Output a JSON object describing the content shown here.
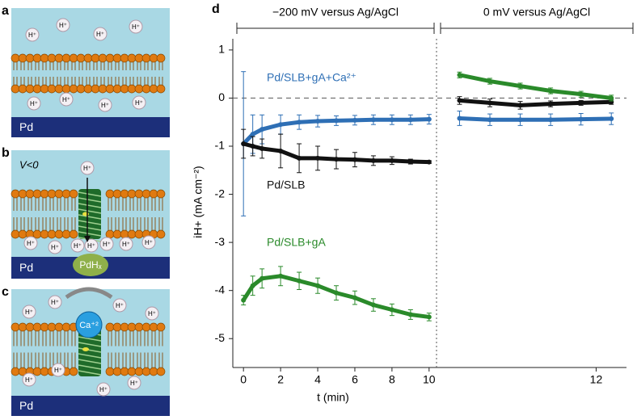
{
  "panels": [
    {
      "label": "a",
      "ions": [
        "H⁺",
        "H⁺",
        "H⁺",
        "H⁺",
        "H⁺",
        "H⁺",
        "H⁺",
        "H⁺"
      ],
      "substrate": "Pd"
    },
    {
      "label": "b",
      "voltage": "V<0",
      "ions": [
        "H⁺",
        "H⁺",
        "H⁺",
        "H⁺",
        "H⁺",
        "H⁺",
        "H⁺",
        "H⁺"
      ],
      "substrate": "Pd",
      "hydride": "PdHₓ"
    },
    {
      "label": "c",
      "ions": [
        "H⁺",
        "H⁺",
        "H⁺",
        "H⁺",
        "H⁺",
        "H⁺",
        "H⁺",
        "H⁺"
      ],
      "substrate": "Pd",
      "blocker": "Ca⁺²"
    }
  ],
  "chart_data": {
    "type": "scatter",
    "panel_label": "d",
    "segment_labels": [
      "−200 mV versus Ag/AgCl",
      "0 mV versus Ag/AgCl"
    ],
    "xlabel": "t (min)",
    "ylabel": "iH+ (mA cm⁻²)",
    "x": [
      0,
      0.5,
      1,
      2,
      3,
      4,
      5,
      6,
      7,
      8,
      9,
      10
    ],
    "x2": [
      10.2,
      10.6,
      11,
      11.4,
      11.8,
      12.2
    ],
    "xlim": [
      -0.4,
      10.4
    ],
    "xticks": [
      0,
      2,
      4,
      6,
      8,
      10
    ],
    "x2lim": [
      9.95,
      12.4
    ],
    "x2ticks": [
      12
    ],
    "ylim": [
      -5.55,
      1.3
    ],
    "yticks": [
      -5,
      -4,
      -3,
      -2,
      -1,
      0,
      1
    ],
    "zero_line": true,
    "series": [
      {
        "name": "Pd/SLB+gA+Ca²⁺",
        "color": "#2e6fb5",
        "values": [
          -0.95,
          -0.75,
          -0.65,
          -0.55,
          -0.5,
          -0.48,
          -0.47,
          -0.46,
          -0.45,
          -0.45,
          -0.45,
          -0.44
        ],
        "errors": [
          1.5,
          0.4,
          0.3,
          0.2,
          0.15,
          0.12,
          0.1,
          0.1,
          0.1,
          0.1,
          0.1,
          0.1
        ],
        "values2": [
          -0.42,
          -0.45,
          -0.45,
          -0.45,
          -0.44,
          -0.43
        ],
        "errors2": [
          0.15,
          0.12,
          0.12,
          0.12,
          0.12,
          0.12
        ]
      },
      {
        "name": "Pd/SLB",
        "color": "#111111",
        "values": [
          -0.95,
          -1.0,
          -1.05,
          -1.1,
          -1.25,
          -1.25,
          -1.27,
          -1.28,
          -1.3,
          -1.3,
          -1.32,
          -1.33
        ],
        "errors": [
          0.3,
          0.2,
          0.2,
          0.35,
          0.3,
          0.25,
          0.2,
          0.15,
          0.1,
          0.08,
          0.05,
          0.03
        ],
        "values2": [
          -0.05,
          -0.1,
          -0.15,
          -0.12,
          -0.1,
          -0.08
        ],
        "errors2": [
          0.08,
          0.08,
          0.08,
          0.06,
          0.05,
          0.05
        ]
      },
      {
        "name": "Pd/SLB+gA",
        "color": "#2a8a2a",
        "values": [
          -4.2,
          -3.9,
          -3.75,
          -3.7,
          -3.8,
          -3.9,
          -4.05,
          -4.15,
          -4.3,
          -4.4,
          -4.5,
          -4.55
        ],
        "errors": [
          0.1,
          0.2,
          0.2,
          0.2,
          0.18,
          0.16,
          0.15,
          0.14,
          0.13,
          0.12,
          0.1,
          0.08
        ],
        "values2": [
          0.48,
          0.35,
          0.25,
          0.15,
          0.08,
          0.0
        ],
        "errors2": [
          0.06,
          0.06,
          0.06,
          0.06,
          0.06,
          0.06
        ]
      }
    ]
  }
}
